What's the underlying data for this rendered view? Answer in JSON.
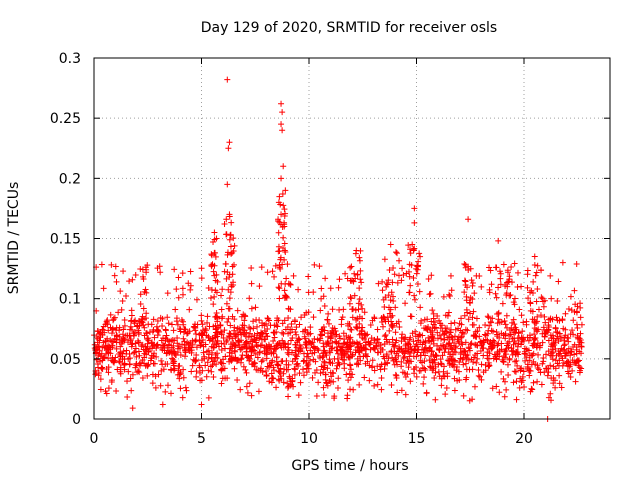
{
  "chart_data": {
    "type": "scatter",
    "title": "Day 129 of 2020, SRMTID for receiver osls",
    "xlabel": "GPS time / hours",
    "ylabel": "SRMTID / TECUs",
    "xlim": [
      0,
      24
    ],
    "ylim": [
      0,
      0.3
    ],
    "xticks": [
      0,
      5,
      10,
      15,
      20
    ],
    "xtick_labels": [
      "0",
      "5",
      "10",
      "15",
      "20"
    ],
    "yticks": [
      0,
      0.05,
      0.1,
      0.15,
      0.2,
      0.25,
      0.3
    ],
    "ytick_labels": [
      "0",
      "0.05",
      "0.1",
      "0.15",
      "0.2",
      "0.25",
      "0.3"
    ],
    "grid": true,
    "marker": "+",
    "color": "#ff0000",
    "series": [
      {
        "name": "SRMTID",
        "notable_points": [
          {
            "x": 6.2,
            "y": 0.282
          },
          {
            "x": 6.3,
            "y": 0.23
          },
          {
            "x": 6.25,
            "y": 0.225
          },
          {
            "x": 6.2,
            "y": 0.195
          },
          {
            "x": 6.3,
            "y": 0.17
          },
          {
            "x": 5.6,
            "y": 0.155
          },
          {
            "x": 5.7,
            "y": 0.15
          },
          {
            "x": 8.7,
            "y": 0.262
          },
          {
            "x": 8.75,
            "y": 0.255
          },
          {
            "x": 8.7,
            "y": 0.245
          },
          {
            "x": 8.75,
            "y": 0.24
          },
          {
            "x": 8.8,
            "y": 0.21
          },
          {
            "x": 8.7,
            "y": 0.2
          },
          {
            "x": 8.9,
            "y": 0.19
          },
          {
            "x": 8.6,
            "y": 0.18
          },
          {
            "x": 8.7,
            "y": 0.17
          },
          {
            "x": 8.85,
            "y": 0.16
          },
          {
            "x": 14.9,
            "y": 0.175
          },
          {
            "x": 14.9,
            "y": 0.163
          },
          {
            "x": 14.8,
            "y": 0.145
          },
          {
            "x": 17.4,
            "y": 0.166
          },
          {
            "x": 18.8,
            "y": 0.148
          },
          {
            "x": 12.2,
            "y": 0.14
          },
          {
            "x": 13.8,
            "y": 0.145
          },
          {
            "x": 20.5,
            "y": 0.135
          },
          {
            "x": 1.8,
            "y": 0.009
          },
          {
            "x": 21.1,
            "y": 0.0
          },
          {
            "x": 5.0,
            "y": 0.012
          },
          {
            "x": 3.2,
            "y": 0.012
          }
        ],
        "baseline": {
          "x_range": [
            0,
            22.7
          ],
          "typical_low": 0.02,
          "typical_high": 0.1,
          "center": 0.058
        }
      }
    ]
  }
}
